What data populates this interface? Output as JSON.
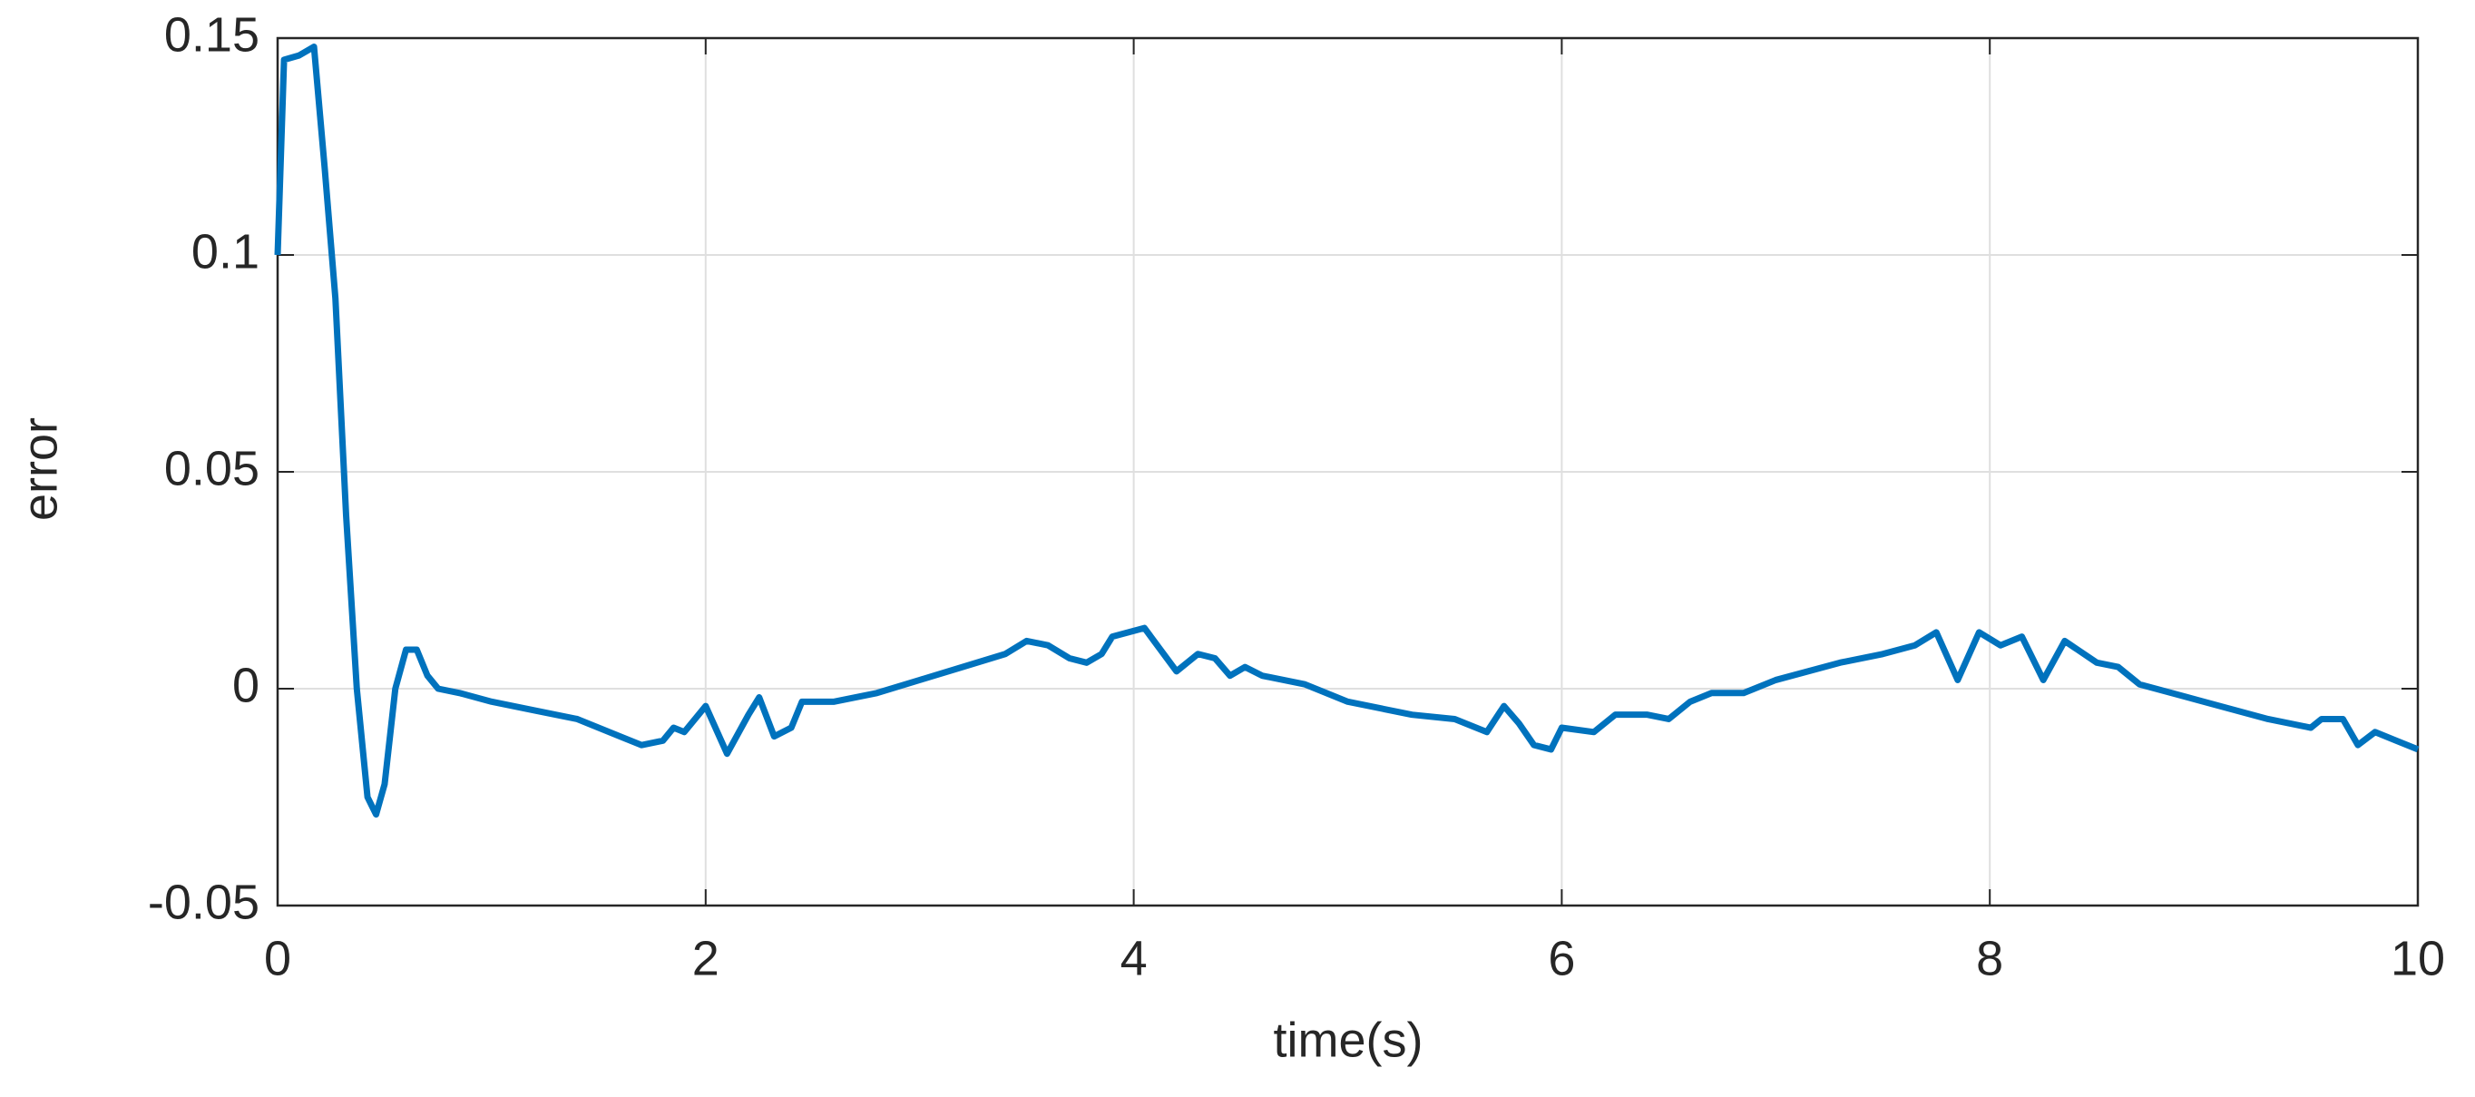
{
  "chart_data": {
    "type": "line",
    "xlabel": "time(s)",
    "ylabel": "error",
    "x": [
      0,
      0.03,
      0.1,
      0.17,
      0.22,
      0.27,
      0.32,
      0.37,
      0.42,
      0.46,
      0.5,
      0.55,
      0.6,
      0.65,
      0.7,
      0.75,
      0.85,
      1.0,
      1.2,
      1.4,
      1.6,
      1.7,
      1.8,
      1.85,
      1.9,
      2.0,
      2.1,
      2.2,
      2.25,
      2.32,
      2.4,
      2.45,
      2.6,
      2.8,
      3.0,
      3.2,
      3.4,
      3.5,
      3.6,
      3.7,
      3.78,
      3.85,
      3.9,
      4.05,
      4.2,
      4.3,
      4.38,
      4.45,
      4.52,
      4.6,
      4.8,
      5.0,
      5.3,
      5.5,
      5.65,
      5.73,
      5.8,
      5.87,
      5.95,
      6.0,
      6.15,
      6.25,
      6.4,
      6.5,
      6.6,
      6.7,
      6.85,
      7.0,
      7.3,
      7.5,
      7.65,
      7.75,
      7.85,
      7.95,
      8.05,
      8.15,
      8.25,
      8.35,
      8.5,
      8.6,
      8.7,
      9.0,
      9.3,
      9.5,
      9.55,
      9.65,
      9.72,
      9.8,
      9.9,
      10.0
    ],
    "values": [
      0.1,
      0.145,
      0.146,
      0.148,
      0.12,
      0.09,
      0.04,
      0.0,
      -0.025,
      -0.029,
      -0.022,
      0.0,
      0.009,
      0.009,
      0.003,
      0.0,
      -0.001,
      -0.003,
      -0.005,
      -0.007,
      -0.011,
      -0.013,
      -0.012,
      -0.009,
      -0.01,
      -0.004,
      -0.015,
      -0.006,
      -0.002,
      -0.011,
      -0.009,
      -0.003,
      -0.003,
      -0.001,
      0.002,
      0.005,
      0.008,
      0.011,
      0.01,
      0.007,
      0.006,
      0.008,
      0.012,
      0.014,
      0.004,
      0.008,
      0.007,
      0.003,
      0.005,
      0.003,
      0.001,
      -0.003,
      -0.006,
      -0.007,
      -0.01,
      -0.004,
      -0.008,
      -0.013,
      -0.014,
      -0.009,
      -0.01,
      -0.006,
      -0.006,
      -0.007,
      -0.003,
      -0.001,
      -0.001,
      0.002,
      0.006,
      0.008,
      0.01,
      0.013,
      0.002,
      0.013,
      0.01,
      0.012,
      0.002,
      0.011,
      0.006,
      0.005,
      0.001,
      -0.003,
      -0.007,
      -0.009,
      -0.007,
      -0.007,
      -0.013,
      -0.01,
      -0.012,
      -0.014
    ],
    "color": "#0072bd",
    "xlim": [
      0,
      10
    ],
    "xticks": [
      0,
      2,
      4,
      6,
      8,
      10
    ],
    "ylim": [
      -0.05,
      0.15
    ],
    "yticks": [
      -0.05,
      0,
      0.05,
      0.1,
      0.15
    ],
    "grid": true
  }
}
